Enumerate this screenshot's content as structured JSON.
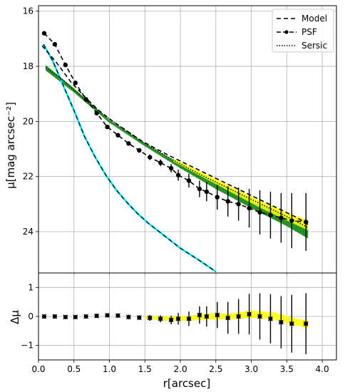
{
  "chart_data": [
    {
      "type": "line",
      "ylabel": "μ[mag arcsec⁻²]",
      "xlim": [
        0.0,
        4.2
      ],
      "ylim": [
        25.5,
        15.8
      ],
      "y_inverted": true,
      "grid": true,
      "legend_position": "top-right",
      "x_ticks": [
        0.0,
        0.5,
        1.0,
        1.5,
        2.0,
        2.5,
        3.0,
        3.5,
        4.0
      ],
      "y_ticks": [
        16,
        18,
        20,
        22,
        24
      ],
      "y_tick_labels": [
        "16",
        "18",
        "20",
        "22",
        "24"
      ],
      "legend": [
        {
          "name": "Model",
          "style": "dashed"
        },
        {
          "name": "PSF",
          "style": "dash-dot with markers"
        },
        {
          "name": "Sersic",
          "style": "dotted"
        }
      ],
      "series": [
        {
          "name": "Model",
          "color": "#000000",
          "style": "dashed",
          "x": [
            0.05,
            0.25,
            0.45,
            0.65,
            0.85,
            1.05,
            1.25,
            1.45,
            1.65,
            1.85,
            2.05,
            2.25,
            2.45,
            2.65,
            2.85,
            3.05,
            3.25,
            3.45,
            3.65,
            3.8
          ],
          "y": [
            17.25,
            17.85,
            18.55,
            19.1,
            19.6,
            20.0,
            20.35,
            20.7,
            20.98,
            21.25,
            21.5,
            21.75,
            22.0,
            22.25,
            22.5,
            22.75,
            23.0,
            23.25,
            23.5,
            23.75
          ]
        },
        {
          "name": "Data",
          "color": "#000000",
          "style": "dashed-markers",
          "x": [
            0.08,
            0.23,
            0.38,
            0.52,
            0.67,
            0.82,
            0.97,
            1.12,
            1.27,
            1.42,
            1.57,
            1.72,
            1.87,
            1.97,
            2.12,
            2.27,
            2.37,
            2.52,
            2.67,
            2.82,
            2.97,
            3.12,
            3.27,
            3.42,
            3.57,
            3.77
          ],
          "y": [
            16.8,
            17.2,
            17.95,
            18.6,
            19.2,
            19.7,
            20.2,
            20.5,
            20.8,
            21.05,
            21.3,
            21.5,
            21.7,
            21.95,
            22.15,
            22.45,
            22.55,
            22.75,
            22.9,
            23.0,
            23.15,
            23.3,
            23.4,
            23.5,
            23.6,
            23.65
          ],
          "yerr": [
            0.03,
            0.03,
            0.04,
            0.05,
            0.05,
            0.06,
            0.06,
            0.07,
            0.08,
            0.08,
            0.1,
            0.12,
            0.15,
            0.2,
            0.25,
            0.3,
            0.35,
            0.45,
            0.55,
            0.6,
            0.7,
            0.8,
            0.85,
            0.9,
            1.0,
            1.05
          ]
        },
        {
          "name": "Sersic",
          "color": "#000000",
          "style": "dotted",
          "x": [
            0.1,
            0.3,
            0.5,
            0.7,
            0.9,
            1.1,
            1.3,
            1.5,
            1.7,
            1.9,
            2.1,
            2.3,
            2.5,
            2.7,
            2.9,
            3.1,
            3.3,
            3.5,
            3.8
          ],
          "y": [
            18.05,
            18.4,
            18.85,
            19.3,
            19.72,
            20.1,
            20.45,
            20.8,
            21.1,
            21.4,
            21.68,
            21.95,
            22.2,
            22.45,
            22.7,
            22.95,
            23.2,
            23.45,
            23.85
          ]
        },
        {
          "name": "PSF",
          "color": "#00ffff",
          "style": "dash-dot",
          "x": [
            0.07,
            0.2,
            0.35,
            0.5,
            0.65,
            0.8,
            0.95,
            1.1,
            1.25,
            1.4,
            1.55,
            1.7,
            1.85,
            2.0,
            2.15,
            2.3,
            2.5
          ],
          "y": [
            17.2,
            17.8,
            18.7,
            19.6,
            20.55,
            21.3,
            21.95,
            22.5,
            22.95,
            23.35,
            23.7,
            24.0,
            24.3,
            24.6,
            24.85,
            25.1,
            25.45
          ]
        },
        {
          "name": "Sersic uncertainty band",
          "color": "#008000",
          "style": "band",
          "x": [
            0.1,
            0.5,
            1.0,
            1.5,
            2.0,
            2.5,
            3.0,
            3.5,
            3.8
          ],
          "y_low": [
            17.95,
            18.8,
            19.95,
            20.8,
            21.55,
            22.2,
            22.85,
            23.45,
            23.85
          ],
          "y_high": [
            18.15,
            18.95,
            20.05,
            20.9,
            21.7,
            22.45,
            23.15,
            23.8,
            24.25
          ]
        },
        {
          "name": "Model uncertainty band",
          "color": "#ffff00",
          "style": "band",
          "x": [
            1.9,
            2.3,
            2.7,
            3.1,
            3.5,
            3.8
          ],
          "y_low": [
            21.35,
            21.85,
            22.35,
            22.85,
            23.3,
            23.6
          ],
          "y_high": [
            21.45,
            22.0,
            22.55,
            23.1,
            23.6,
            23.95
          ]
        }
      ]
    },
    {
      "type": "scatter",
      "xlabel": "r[arcsec]",
      "ylabel": "Δμ",
      "xlim": [
        0.0,
        4.2
      ],
      "ylim": [
        -1.5,
        1.5
      ],
      "grid": true,
      "x_ticks": [
        0.0,
        0.5,
        1.0,
        1.5,
        2.0,
        2.5,
        3.0,
        3.5,
        4.0
      ],
      "x_tick_labels": [
        "0.0",
        "0.5",
        "1.0",
        "1.5",
        "2.0",
        "2.5",
        "3.0",
        "3.5",
        "4.0"
      ],
      "y_ticks": [
        -1,
        0,
        1
      ],
      "y_tick_labels": [
        "−1",
        "0",
        "1"
      ],
      "series": [
        {
          "name": "Residual",
          "color": "#000000",
          "style": "markers",
          "x": [
            0.08,
            0.23,
            0.38,
            0.52,
            0.67,
            0.82,
            0.97,
            1.12,
            1.27,
            1.42,
            1.57,
            1.72,
            1.87,
            1.97,
            2.12,
            2.27,
            2.37,
            2.52,
            2.67,
            2.82,
            2.97,
            3.12,
            3.27,
            3.42,
            3.57,
            3.77
          ],
          "y": [
            0.0,
            0.0,
            -0.02,
            -0.02,
            0.0,
            0.02,
            0.04,
            0.03,
            -0.02,
            -0.04,
            -0.05,
            -0.08,
            -0.12,
            -0.08,
            -0.08,
            0.05,
            0.0,
            0.05,
            -0.05,
            0.0,
            0.08,
            0.0,
            -0.08,
            -0.2,
            -0.25,
            -0.25
          ],
          "yerr": [
            0.03,
            0.03,
            0.04,
            0.05,
            0.05,
            0.06,
            0.06,
            0.07,
            0.08,
            0.08,
            0.1,
            0.12,
            0.15,
            0.2,
            0.25,
            0.3,
            0.35,
            0.45,
            0.55,
            0.6,
            0.7,
            0.8,
            0.85,
            0.9,
            1.0,
            1.05
          ]
        },
        {
          "name": "Residual band",
          "color": "#ffff00",
          "style": "band",
          "x": [
            1.5,
            1.8,
            2.1,
            2.4,
            2.7,
            3.0,
            3.3,
            3.6,
            3.8
          ],
          "y_low": [
            -0.08,
            -0.15,
            -0.15,
            -0.1,
            -0.1,
            -0.05,
            -0.1,
            -0.3,
            -0.4
          ],
          "y_high": [
            0.02,
            0.0,
            0.02,
            0.1,
            0.1,
            0.2,
            0.15,
            -0.05,
            -0.15
          ]
        }
      ]
    }
  ]
}
